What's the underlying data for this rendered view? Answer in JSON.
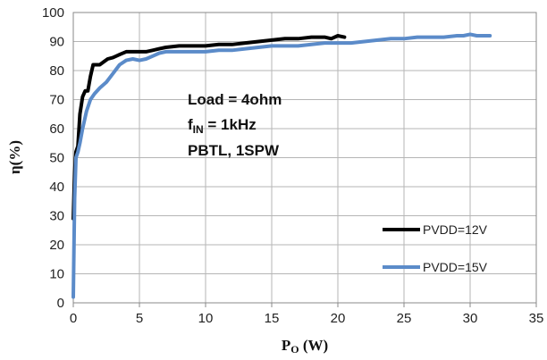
{
  "chart_data": {
    "type": "line",
    "xlabel": "P",
    "xlabel_sub": "O",
    "xlabel_unit": " (W)",
    "ylabel": "η(%)",
    "xlim": [
      0,
      35
    ],
    "ylim": [
      0,
      100
    ],
    "xticks": [
      "0",
      "5",
      "10",
      "15",
      "20",
      "25",
      "30",
      "35"
    ],
    "yticks": [
      "0",
      "10",
      "20",
      "30",
      "40",
      "50",
      "60",
      "70",
      "80",
      "90",
      "100"
    ],
    "grid": true,
    "legend_position": "bottom-right",
    "annotation": {
      "line1": "Load = 4ohm",
      "line2_main": "f",
      "line2_sub": "IN",
      "line2_rest": " = 1kHz",
      "line3": "PBTL, 1SPW"
    },
    "series": [
      {
        "name": "PVDD=12V",
        "color": "#000000",
        "x": [
          0,
          0.1,
          0.2,
          0.35,
          0.5,
          0.7,
          0.9,
          1.1,
          1.3,
          1.5,
          1.7,
          2.0,
          2.3,
          2.6,
          3.0,
          3.5,
          4.0,
          4.5,
          5.0,
          5.5,
          6.0,
          6.5,
          7.0,
          8.0,
          9.0,
          10.0,
          11.0,
          12.0,
          13.0,
          14.0,
          15.0,
          16.0,
          17.0,
          18.0,
          18.5,
          19.0,
          19.5,
          20.0,
          20.5
        ],
        "y": [
          29,
          45,
          52,
          54,
          65,
          71,
          73,
          73,
          78,
          82,
          82,
          82,
          83,
          84,
          84.5,
          85.5,
          86.5,
          86.5,
          86.5,
          86.5,
          87,
          87.5,
          88,
          88.5,
          88.5,
          88.5,
          89,
          89,
          89.5,
          90,
          90.5,
          91,
          91,
          91.5,
          91.5,
          91.5,
          91,
          92,
          91.5
        ]
      },
      {
        "name": "PVDD=15V",
        "color": "#5b8bc9",
        "x": [
          0,
          0.1,
          0.2,
          0.35,
          0.5,
          0.7,
          1.0,
          1.3,
          1.6,
          2.0,
          2.5,
          3.0,
          3.5,
          4.0,
          4.5,
          5.0,
          5.5,
          6.0,
          6.5,
          7.0,
          7.5,
          8.0,
          9.0,
          10.0,
          11.0,
          12.0,
          13.0,
          14.0,
          15.0,
          16.0,
          17.0,
          18.0,
          19.0,
          20.0,
          21.0,
          22.0,
          23.0,
          24.0,
          25.0,
          26.0,
          27.0,
          28.0,
          29.0,
          29.5,
          30.0,
          30.5,
          31.0,
          31.5
        ],
        "y": [
          2,
          36,
          50,
          52,
          55,
          60,
          66,
          70,
          72,
          74,
          76,
          79,
          82,
          83.5,
          84,
          83.5,
          84,
          85,
          86,
          86.5,
          86.5,
          86.5,
          86.5,
          86.5,
          87,
          87,
          87.5,
          88,
          88.5,
          88.5,
          88.5,
          89,
          89.5,
          89.5,
          89.5,
          90,
          90.5,
          91,
          91,
          91.5,
          91.5,
          91.5,
          92,
          92,
          92.5,
          92,
          92,
          92
        ]
      }
    ]
  }
}
